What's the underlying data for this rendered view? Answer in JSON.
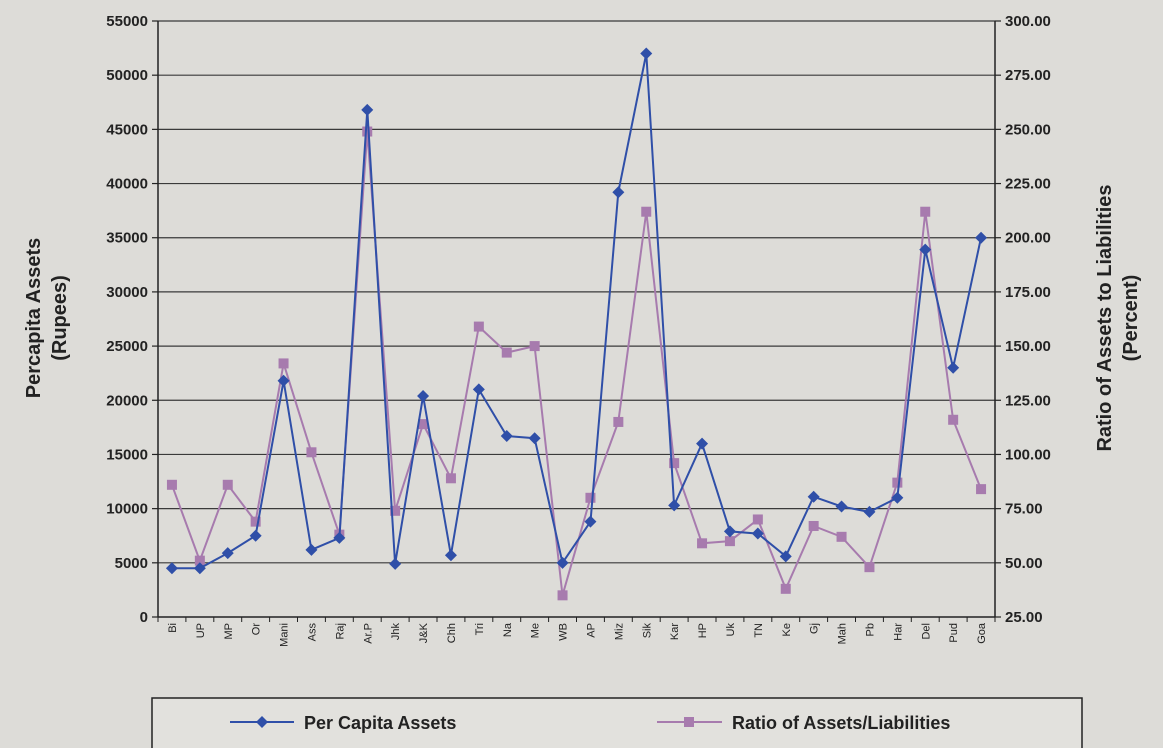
{
  "chart_data": {
    "type": "line",
    "categories": [
      "Bi",
      "UP",
      "MP",
      "Or",
      "Mani",
      "Ass",
      "Raj",
      "Ar.P",
      "Jhk",
      "J&K",
      "Chh",
      "Tri",
      "Na",
      "Me",
      "WB",
      "AP",
      "Miz",
      "Sik",
      "Kar",
      "HP",
      "Uk",
      "TN",
      "Ke",
      "Gj",
      "Mah",
      "Pb",
      "Har",
      "Del",
      "Pud",
      "Goa"
    ],
    "series": [
      {
        "name": "Per Capita Assets",
        "axis": "left",
        "color": "#2f4fa8",
        "marker": "diamond",
        "values": [
          4500,
          4500,
          5900,
          7500,
          21800,
          6200,
          7300,
          46800,
          4900,
          20400,
          5700,
          21000,
          16700,
          16500,
          5000,
          8800,
          39200,
          52000,
          10300,
          16000,
          7900,
          7700,
          5600,
          11100,
          10200,
          9700,
          11000,
          33900,
          23000,
          35000
        ]
      },
      {
        "name": "Ratio of Assets/Liabilities",
        "axis": "right",
        "color": "#a77bae",
        "marker": "square",
        "values": [
          86,
          51,
          86,
          69,
          142,
          101,
          63,
          249,
          74,
          114,
          89,
          159,
          147,
          150,
          35,
          80,
          115,
          212,
          96,
          59,
          60,
          70,
          38,
          67,
          62,
          48,
          87,
          212,
          116,
          84
        ]
      }
    ],
    "ylabel": [
      "Percapita Assets",
      "(Rupees)"
    ],
    "y2label": [
      "Ratio of Assets to Liabilities",
      "(Percent)"
    ],
    "ylim": [
      0,
      55000
    ],
    "y2lim": [
      25,
      300
    ],
    "yticks": [
      "0",
      "5000",
      "10000",
      "15000",
      "20000",
      "25000",
      "30000",
      "35000",
      "40000",
      "45000",
      "50000",
      "55000"
    ],
    "y2ticks": [
      "25.00",
      "50.00",
      "75.00",
      "100.00",
      "125.00",
      "150.00",
      "175.00",
      "200.00",
      "225.00",
      "250.00",
      "275.00",
      "300.00"
    ],
    "grid": true,
    "legend": "bottom"
  }
}
